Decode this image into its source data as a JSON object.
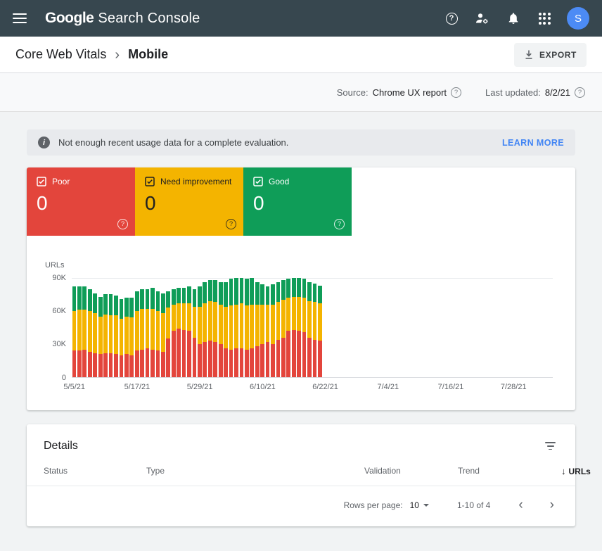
{
  "icons": {
    "help_glyph": "?",
    "info_glyph": "i"
  },
  "header": {
    "logo_google": "Google",
    "logo_rest": "Search Console",
    "avatar_initial": "S"
  },
  "breadcrumb": {
    "root": "Core Web Vitals",
    "separator": "›",
    "current": "Mobile",
    "export_label": "EXPORT"
  },
  "meta_bar": {
    "source_label": "Source:",
    "source_value": "Chrome UX report",
    "updated_label": "Last updated:",
    "updated_value": "8/2/21"
  },
  "banner": {
    "message": "Not enough recent usage data for a complete evaluation.",
    "action": "LEARN MORE"
  },
  "summary_tiles": [
    {
      "label": "Poor",
      "value": "0",
      "color": "#e3453c",
      "text_color": "#ffffff"
    },
    {
      "label": "Need improvement",
      "value": "0",
      "color": "#f4b400",
      "text_color": "#212121"
    },
    {
      "label": "Good",
      "value": "0",
      "color": "#0f9d58",
      "text_color": "#ffffff"
    }
  ],
  "chart_data": {
    "type": "bar",
    "stacked": true,
    "title": "",
    "ylabel": "URLs",
    "values_unit": "thousands of URLs",
    "ylim": [
      0,
      95
    ],
    "y_ticks": [
      "90K",
      "60K",
      "30K",
      "0"
    ],
    "grid": "90K line only",
    "legend_position": "none (tiles act as legend)",
    "x_tick_labels": [
      "5/5/21",
      "5/17/21",
      "5/29/21",
      "6/10/21",
      "6/22/21",
      "7/4/21",
      "7/16/21",
      "7/28/21"
    ],
    "x_tick_positions_days": [
      0,
      12,
      24,
      36,
      48,
      60,
      72,
      84
    ],
    "domain_days": 92,
    "categories": [
      "5/5/21",
      "5/6/21",
      "5/7/21",
      "5/8/21",
      "5/9/21",
      "5/10/21",
      "5/11/21",
      "5/12/21",
      "5/13/21",
      "5/14/21",
      "5/15/21",
      "5/16/21",
      "5/17/21",
      "5/18/21",
      "5/19/21",
      "5/20/21",
      "5/21/21",
      "5/22/21",
      "5/23/21",
      "5/24/21",
      "5/25/21",
      "5/26/21",
      "5/27/21",
      "5/28/21",
      "5/29/21",
      "5/30/21",
      "5/31/21",
      "6/1/21",
      "6/2/21",
      "6/3/21",
      "6/4/21",
      "6/5/21",
      "6/6/21",
      "6/7/21",
      "6/8/21",
      "6/9/21",
      "6/10/21",
      "6/11/21",
      "6/12/21",
      "6/13/21",
      "6/14/21",
      "6/15/21",
      "6/16/21",
      "6/17/21",
      "6/18/21",
      "6/19/21",
      "6/20/21",
      "6/21/21"
    ],
    "series": [
      {
        "name": "Poor",
        "color": "#e3453c",
        "values": [
          24,
          24,
          25,
          23,
          22,
          21,
          22,
          22,
          21,
          20,
          21,
          20,
          24,
          25,
          26,
          25,
          24,
          23,
          35,
          42,
          44,
          43,
          42,
          36,
          30,
          32,
          33,
          32,
          30,
          26,
          25,
          26,
          26,
          25,
          26,
          28,
          30,
          32,
          30,
          34,
          36,
          42,
          43,
          42,
          41,
          36,
          34,
          33
        ]
      },
      {
        "name": "Need improvement",
        "color": "#f4b400",
        "values": [
          36,
          37,
          36,
          37,
          36,
          34,
          35,
          34,
          35,
          33,
          34,
          34,
          36,
          37,
          36,
          37,
          36,
          35,
          28,
          24,
          23,
          24,
          25,
          28,
          34,
          35,
          36,
          36,
          36,
          38,
          40,
          40,
          41,
          40,
          40,
          38,
          36,
          34,
          36,
          34,
          34,
          30,
          30,
          31,
          31,
          33,
          34,
          34
        ]
      },
      {
        "name": "Good",
        "color": "#0f9d58",
        "values": [
          22,
          21,
          21,
          20,
          18,
          18,
          18,
          19,
          18,
          18,
          17,
          18,
          18,
          18,
          18,
          19,
          18,
          18,
          15,
          14,
          14,
          14,
          15,
          16,
          18,
          19,
          19,
          20,
          20,
          22,
          24,
          24,
          23,
          24,
          24,
          20,
          18,
          16,
          18,
          18,
          18,
          17,
          17,
          17,
          17,
          17,
          17,
          16
        ]
      }
    ],
    "note": "No data shown after 6/21/21"
  },
  "details": {
    "title": "Details",
    "columns": [
      "Status",
      "Type",
      "Validation",
      "Trend",
      "URLs"
    ],
    "sort_arrow": "↓",
    "pagination": {
      "rows_per_page_label": "Rows per page:",
      "rows_per_page_value": "10",
      "range_label": "1-10 of 4",
      "prev_glyph": "‹",
      "next_glyph": "›"
    }
  }
}
